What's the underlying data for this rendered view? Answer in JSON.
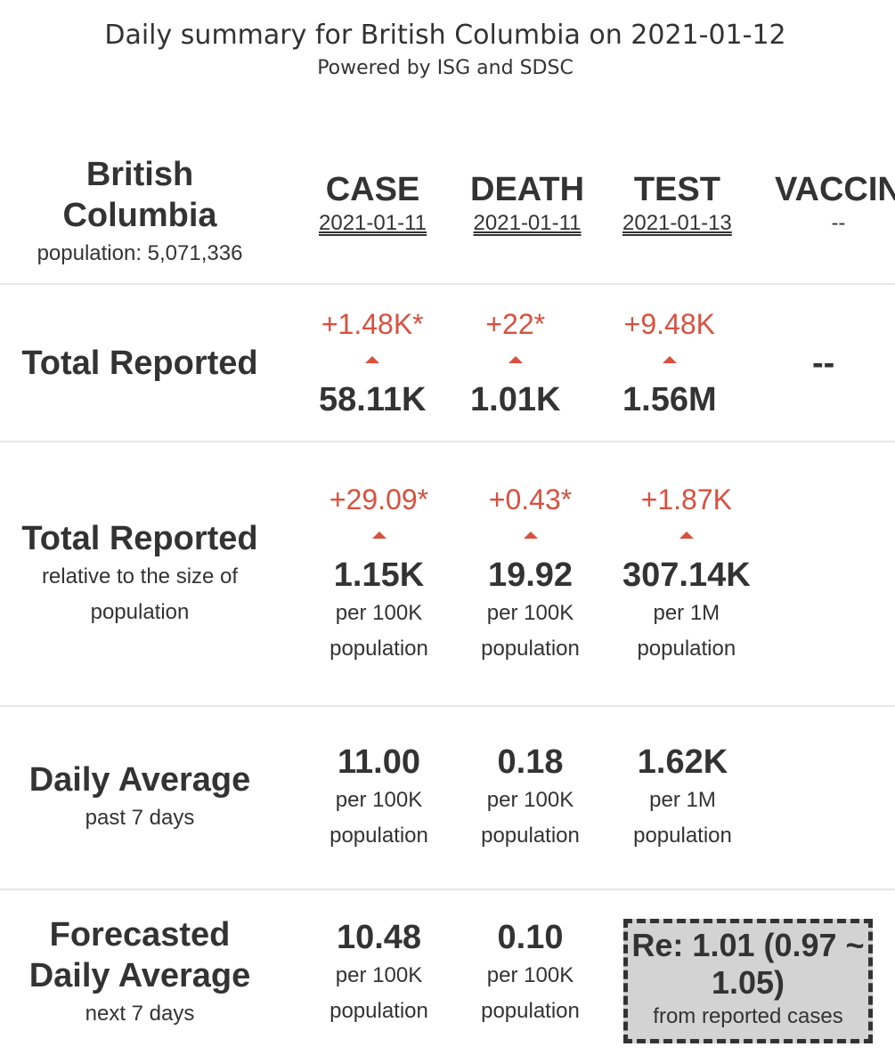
{
  "header": {
    "title": "Daily summary for British Columbia on 2021-01-12",
    "subtitle": "Powered by ISG and SDSC"
  },
  "region": {
    "name": "British Columbia",
    "population": "population: 5,071,336"
  },
  "columns": [
    {
      "name": "CASE",
      "date": "2021-01-11"
    },
    {
      "name": "DEATH",
      "date": "2021-01-11"
    },
    {
      "name": "TEST",
      "date": "2021-01-13"
    },
    {
      "name": "VACCIN",
      "date": "--"
    }
  ],
  "rows": [
    {
      "label": "Total Reported",
      "cells": [
        {
          "change": "+1.48K*",
          "value": "58.11K"
        },
        {
          "change": "+22*",
          "value": "1.01K"
        },
        {
          "change": "+9.48K",
          "value": "1.56M"
        },
        {
          "value": "--"
        }
      ]
    },
    {
      "label": "Total Reported",
      "note": "relative to the size of population",
      "cells": [
        {
          "change": "+29.09*",
          "value": "1.15K",
          "unit": "per 100K population"
        },
        {
          "change": "+0.43*",
          "value": "19.92",
          "unit": "per 100K population"
        },
        {
          "change": "+1.87K",
          "value": "307.14K",
          "unit": "per 1M population"
        }
      ]
    },
    {
      "label": "Daily Average",
      "note": "past 7 days",
      "cells": [
        {
          "value": "11.00",
          "unit": "per 100K population"
        },
        {
          "value": "0.18",
          "unit": "per 100K population"
        },
        {
          "value": "1.62K",
          "unit": "per 1M population"
        }
      ]
    },
    {
      "label": "Forecasted Daily Average",
      "note": "next 7 days",
      "cells": [
        {
          "value": "10.48",
          "unit": "per 100K population"
        },
        {
          "value": "0.10",
          "unit": "per 100K population"
        }
      ],
      "re": {
        "value": "Re: 1.01 (0.97 ~ 1.05)",
        "note": "from reported cases"
      }
    }
  ]
}
